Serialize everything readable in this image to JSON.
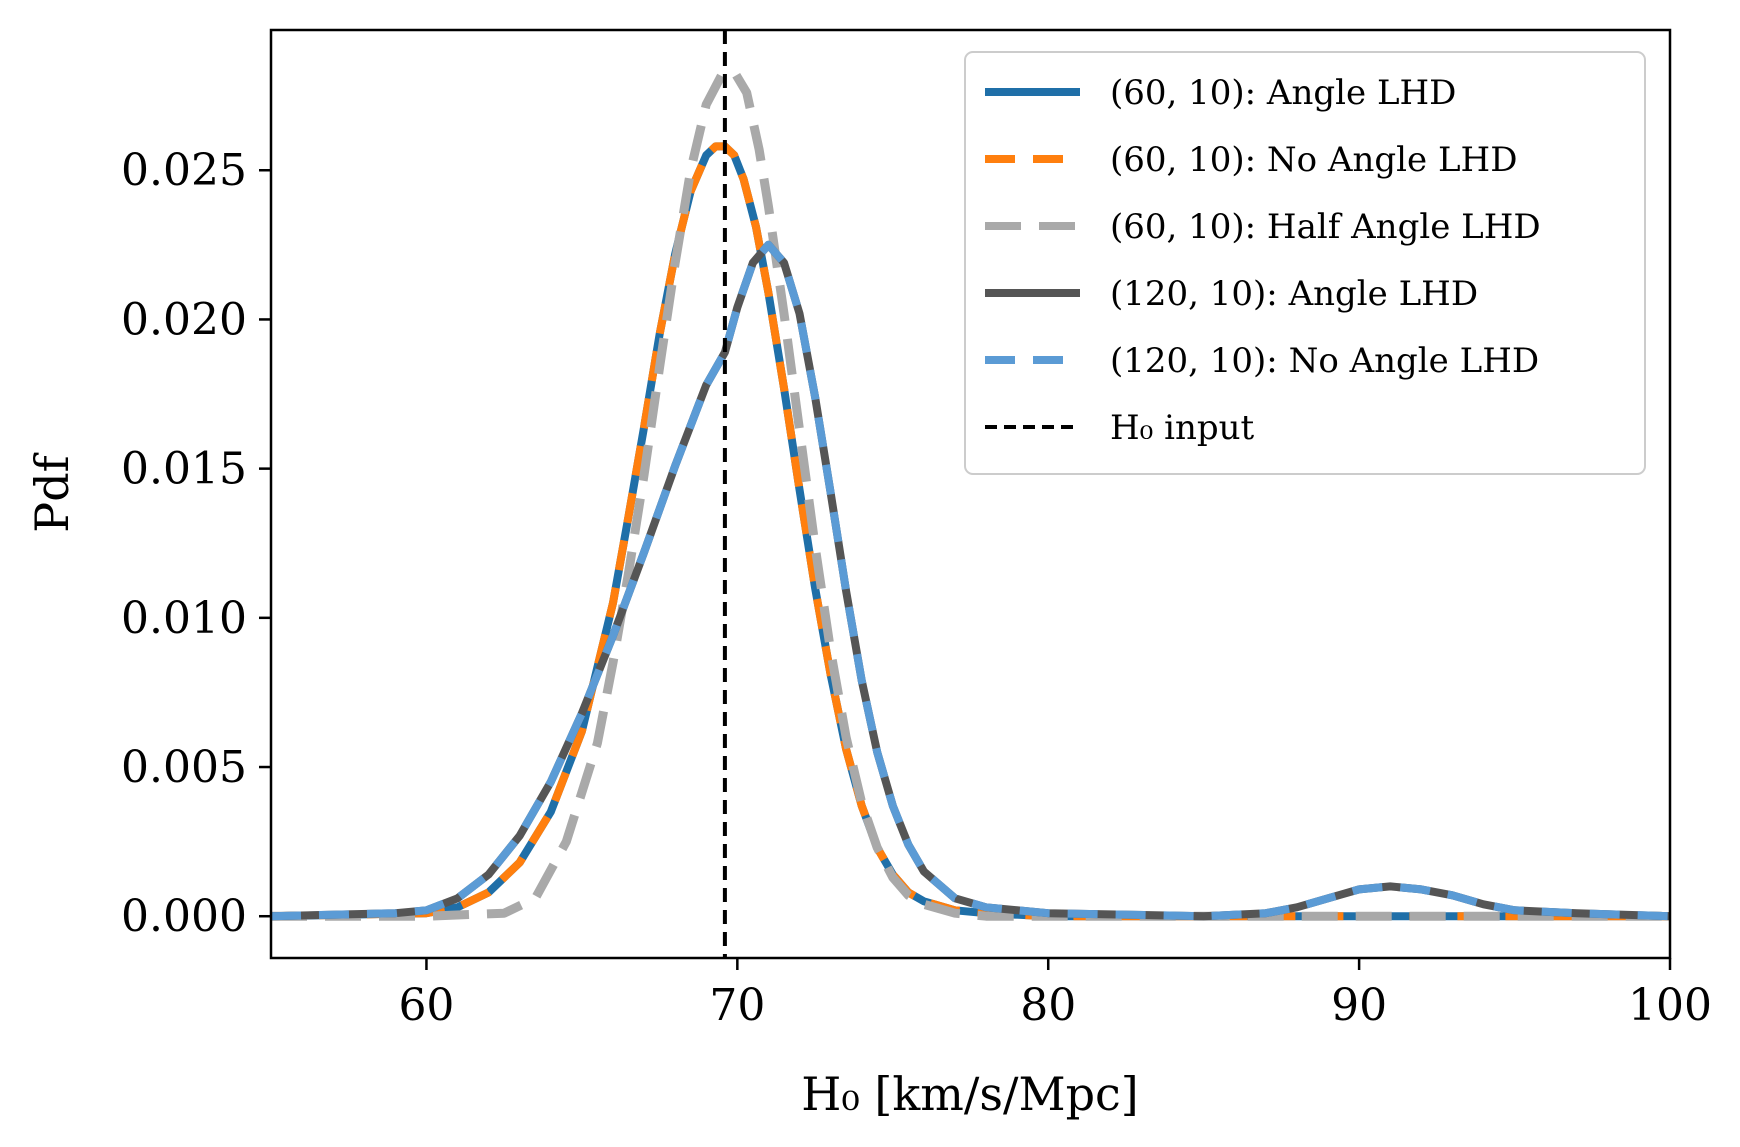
{
  "chart_data": {
    "type": "line",
    "xlabel": "H₀ [km/s/Mpc]",
    "ylabel": "Pdf",
    "xlim": [
      55,
      100
    ],
    "ylim": [
      -0.0014,
      0.0297
    ],
    "x_ticks": [
      60,
      70,
      80,
      90,
      100
    ],
    "x_tick_labels": [
      "60",
      "70",
      "80",
      "90",
      "100"
    ],
    "y_ticks": [
      0.0,
      0.005,
      0.01,
      0.015,
      0.02,
      0.025
    ],
    "y_tick_labels": [
      "0.000",
      "0.005",
      "0.010",
      "0.015",
      "0.020",
      "0.025"
    ],
    "grid": false,
    "legend_position": "top-right",
    "vline": {
      "x": 69.6,
      "label": "H₀ input",
      "color": "#000000",
      "style": "dashed"
    },
    "series": [
      {
        "name": "(60, 10): Angle LHD",
        "color": "#1f6fa8",
        "style": "solid",
        "x": [
          55,
          60,
          61,
          62,
          63,
          64,
          65,
          66,
          66.5,
          67,
          67.5,
          68,
          68.5,
          69,
          69.3,
          69.6,
          69.9,
          70.2,
          70.6,
          71,
          71.5,
          72,
          72.5,
          73,
          73.5,
          74,
          74.5,
          75,
          75.5,
          76,
          77,
          78,
          80,
          85,
          90,
          95,
          100
        ],
        "y": [
          0.0,
          0.0001,
          0.0003,
          0.0008,
          0.0018,
          0.0035,
          0.0062,
          0.0105,
          0.0134,
          0.0164,
          0.0195,
          0.0222,
          0.0243,
          0.0255,
          0.0258,
          0.0258,
          0.0255,
          0.0247,
          0.0231,
          0.0209,
          0.0177,
          0.0143,
          0.011,
          0.0081,
          0.0056,
          0.0037,
          0.0023,
          0.0014,
          0.0008,
          0.0005,
          0.0002,
          0.0001,
          0.0,
          0.0,
          0.0,
          0.0,
          0.0
        ]
      },
      {
        "name": "(60, 10): No Angle LHD",
        "color": "#ff7f0e",
        "style": "dashed",
        "x": [
          55,
          60,
          61,
          62,
          63,
          64,
          65,
          66,
          66.5,
          67,
          67.5,
          68,
          68.5,
          69,
          69.3,
          69.6,
          69.9,
          70.2,
          70.6,
          71,
          71.5,
          72,
          72.5,
          73,
          73.5,
          74,
          74.5,
          75,
          75.5,
          76,
          77,
          78,
          80,
          85,
          90,
          95,
          100
        ],
        "y": [
          0.0,
          0.0001,
          0.0003,
          0.0008,
          0.0018,
          0.0035,
          0.0062,
          0.0105,
          0.0134,
          0.0164,
          0.0195,
          0.0222,
          0.0243,
          0.0255,
          0.0258,
          0.0258,
          0.0255,
          0.0247,
          0.0231,
          0.0209,
          0.0177,
          0.0143,
          0.011,
          0.0081,
          0.0056,
          0.0037,
          0.0023,
          0.0014,
          0.0008,
          0.0005,
          0.0002,
          0.0001,
          0.0,
          0.0,
          0.0,
          0.0,
          0.0
        ]
      },
      {
        "name": "(60, 10): Half Angle LHD",
        "color": "#a9a9a9",
        "style": "dashed",
        "x": [
          55,
          60,
          62.5,
          63.5,
          64.5,
          65.5,
          66,
          66.5,
          67,
          67.5,
          68,
          68.5,
          69,
          69.5,
          69.9,
          70.3,
          70.7,
          71,
          71.5,
          72,
          72.5,
          73,
          73.5,
          74,
          74.5,
          75,
          75.5,
          76,
          77,
          78,
          80,
          85,
          90,
          95,
          100
        ],
        "y": [
          0.0,
          0.0,
          0.0001,
          0.0006,
          0.0025,
          0.0058,
          0.0085,
          0.0115,
          0.0148,
          0.0184,
          0.0219,
          0.025,
          0.0272,
          0.0282,
          0.0283,
          0.0276,
          0.0257,
          0.0238,
          0.0202,
          0.0163,
          0.0124,
          0.0089,
          0.006,
          0.0038,
          0.0023,
          0.0013,
          0.0007,
          0.0004,
          0.0001,
          0.0,
          0.0,
          0.0,
          0.0,
          0.0,
          0.0
        ]
      },
      {
        "name": "(120, 10): Angle LHD",
        "color": "#555555",
        "style": "solid",
        "x": [
          55,
          59,
          60,
          61,
          62,
          63,
          64,
          65,
          66,
          67,
          68,
          69,
          69.6,
          70,
          70.5,
          71,
          71.5,
          72,
          72.5,
          73,
          73.5,
          74,
          74.5,
          75,
          75.5,
          76,
          77,
          78,
          80,
          85,
          87,
          88,
          89,
          90,
          91,
          92,
          93,
          94,
          95,
          97,
          100
        ],
        "y": [
          0.0,
          0.0001,
          0.0002,
          0.0006,
          0.0014,
          0.0027,
          0.0045,
          0.0068,
          0.0094,
          0.0122,
          0.0151,
          0.0178,
          0.0189,
          0.0204,
          0.0219,
          0.0225,
          0.0219,
          0.0202,
          0.0174,
          0.0142,
          0.0109,
          0.0079,
          0.0055,
          0.0037,
          0.0024,
          0.0015,
          0.0006,
          0.0003,
          0.0001,
          0.0,
          0.0001,
          0.0003,
          0.0006,
          0.0009,
          0.001,
          0.0009,
          0.0007,
          0.0004,
          0.0002,
          0.0001,
          0.0
        ]
      },
      {
        "name": "(120, 10): No Angle LHD",
        "color": "#5b9bd5",
        "style": "dashed",
        "x": [
          55,
          59,
          60,
          61,
          62,
          63,
          64,
          65,
          66,
          67,
          68,
          69,
          69.6,
          70,
          70.5,
          71,
          71.5,
          72,
          72.5,
          73,
          73.5,
          74,
          74.5,
          75,
          75.5,
          76,
          77,
          78,
          80,
          85,
          87,
          88,
          89,
          90,
          91,
          92,
          93,
          94,
          95,
          97,
          100
        ],
        "y": [
          0.0,
          0.0001,
          0.0002,
          0.0006,
          0.0014,
          0.0027,
          0.0045,
          0.0068,
          0.0094,
          0.0122,
          0.0151,
          0.0178,
          0.0189,
          0.0204,
          0.0219,
          0.0225,
          0.0219,
          0.0202,
          0.0174,
          0.0142,
          0.0109,
          0.0079,
          0.0055,
          0.0037,
          0.0024,
          0.0015,
          0.0006,
          0.0003,
          0.0001,
          0.0,
          0.0001,
          0.0003,
          0.0006,
          0.0009,
          0.001,
          0.0009,
          0.0007,
          0.0004,
          0.0002,
          0.0001,
          0.0
        ]
      }
    ]
  }
}
